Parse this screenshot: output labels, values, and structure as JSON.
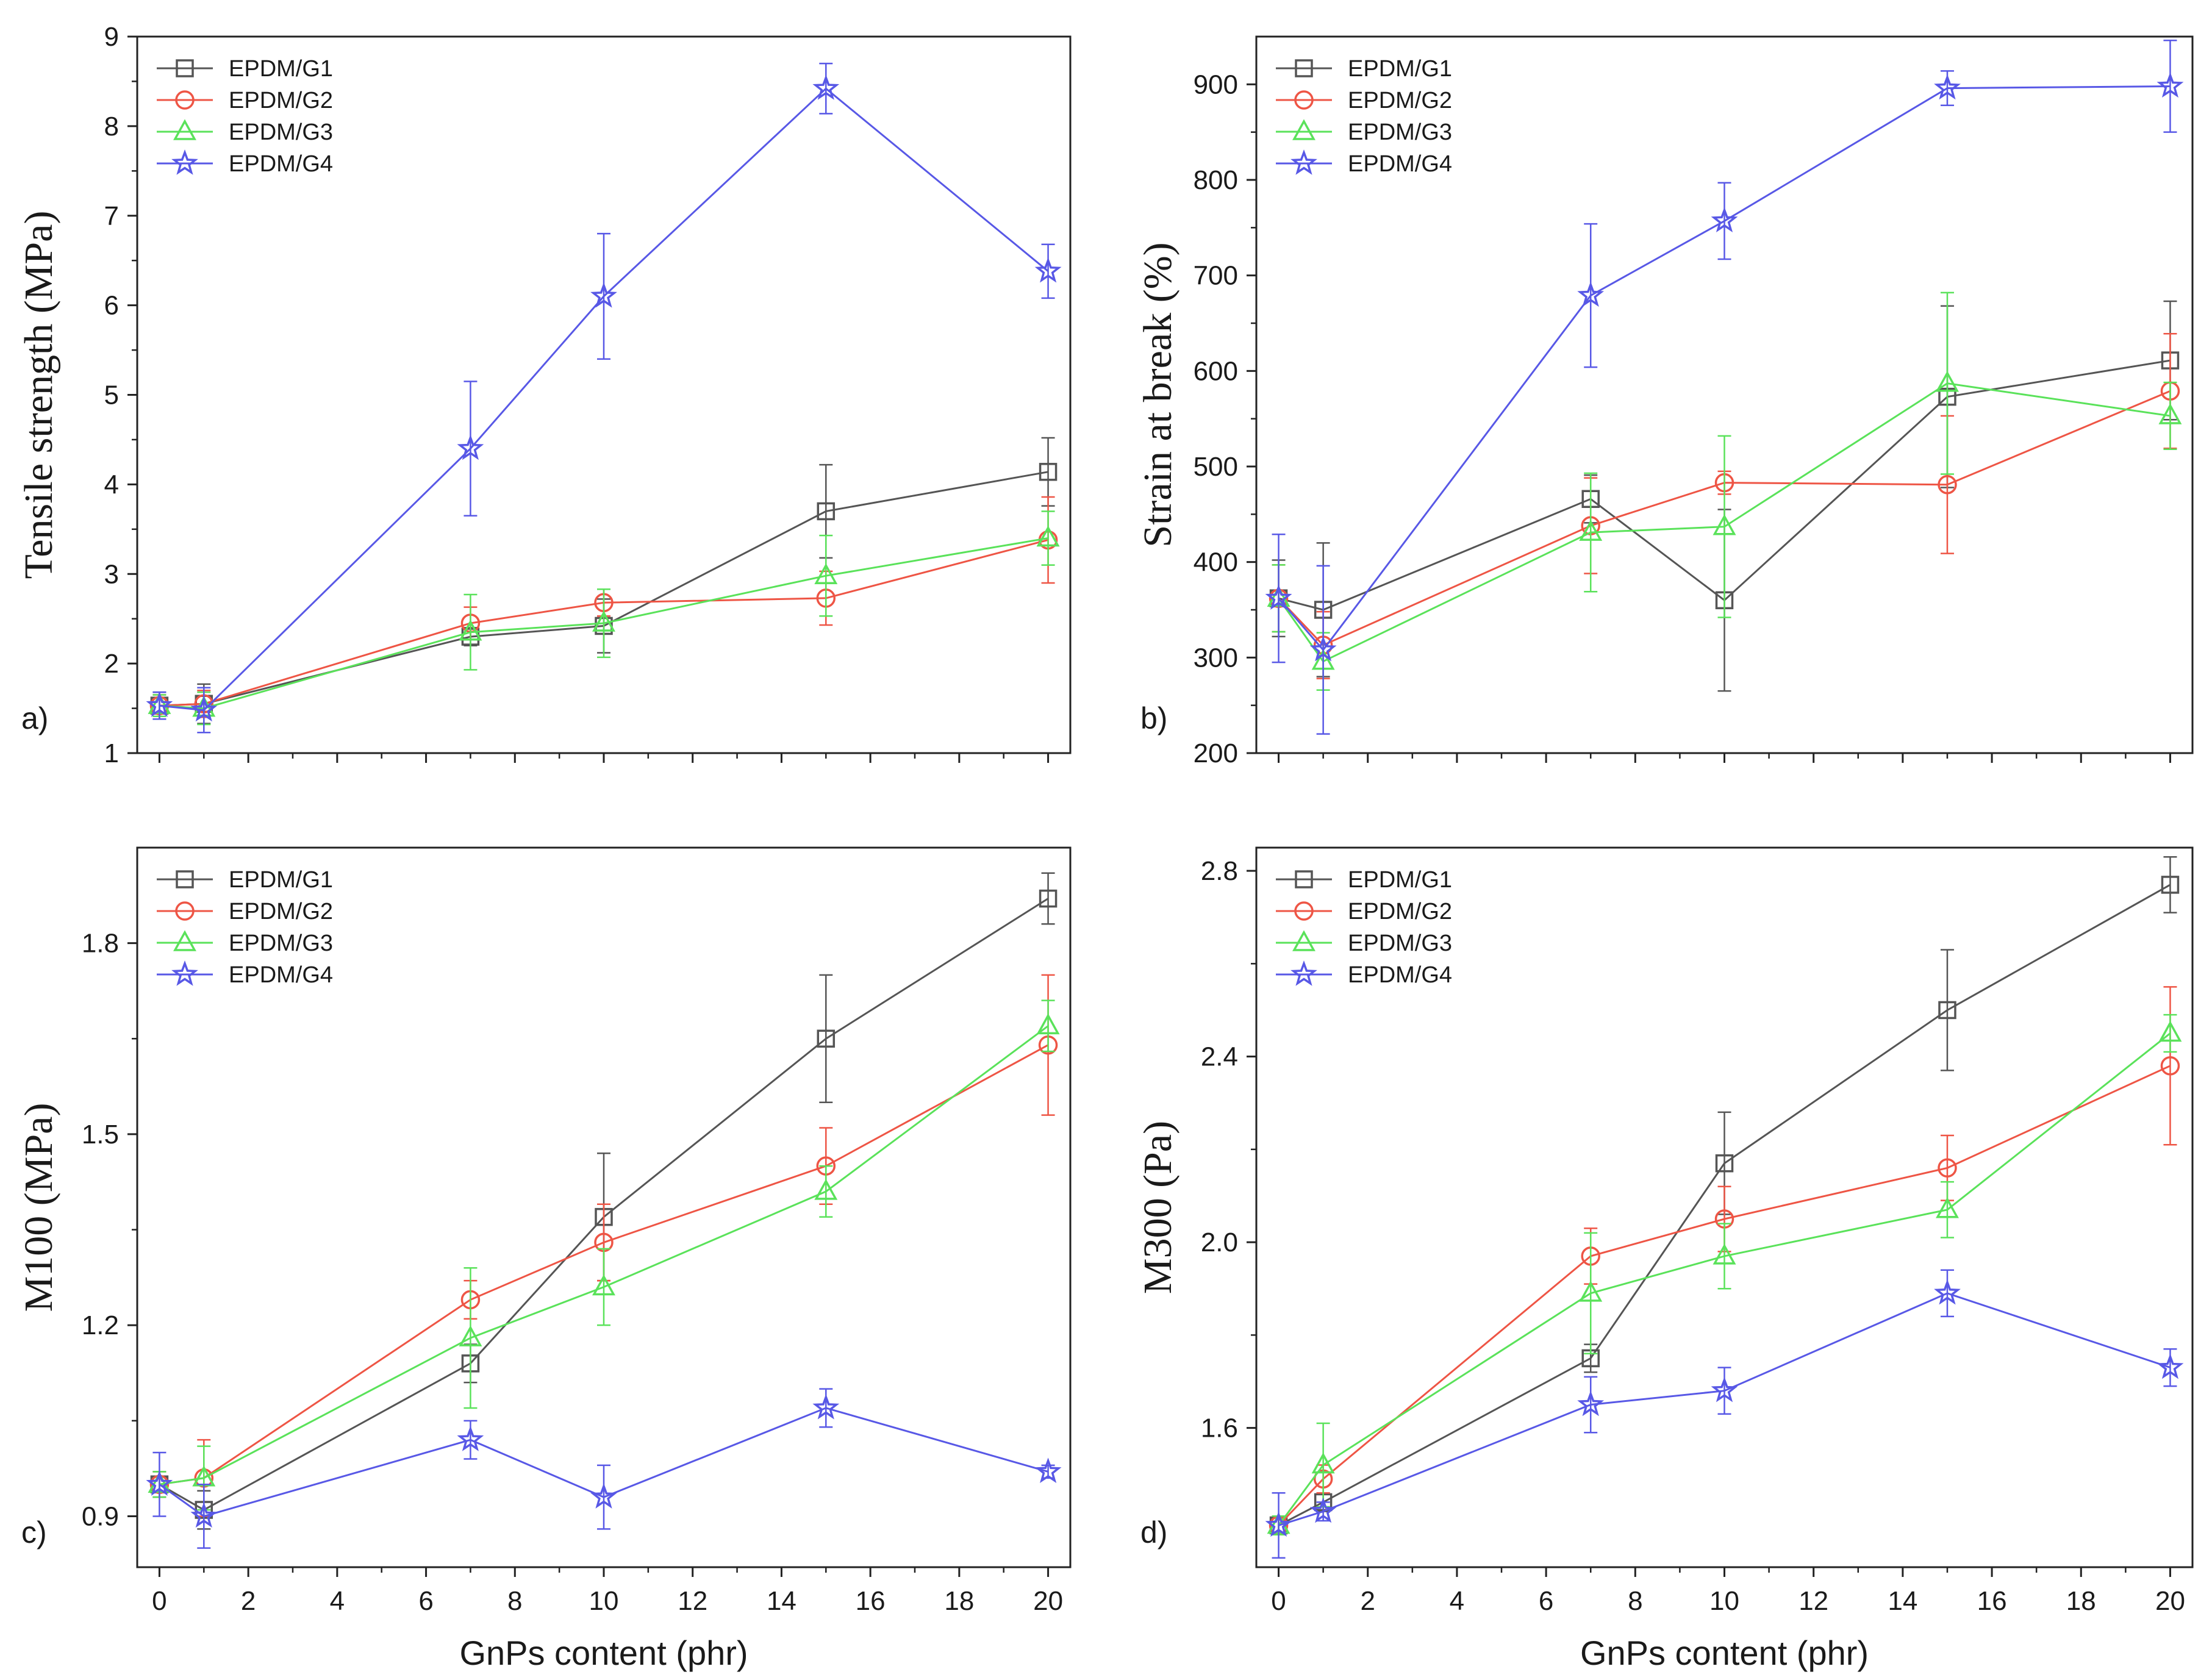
{
  "series_styles": [
    {
      "name": "EPDM/G1",
      "color": "#555555",
      "marker": "square"
    },
    {
      "name": "EPDM/G2",
      "color": "#ee5545",
      "marker": "circle"
    },
    {
      "name": "EPDM/G3",
      "color": "#5ae25a",
      "marker": "triangle"
    },
    {
      "name": "EPDM/G4",
      "color": "#5858e6",
      "marker": "star"
    }
  ],
  "chart_data": [
    {
      "type": "line",
      "panel_label": "a)",
      "ylabel": "Tensile strength (MPa)",
      "xlabel": "",
      "x": [
        0,
        1,
        7,
        10,
        15,
        20
      ],
      "xlim": [
        -0.5,
        20.5
      ],
      "ylim": [
        1,
        9
      ],
      "yticks": [
        1,
        2,
        3,
        4,
        5,
        6,
        7,
        8,
        9
      ],
      "xticks": [
        0,
        2,
        4,
        6,
        8,
        10,
        12,
        14,
        16,
        18,
        20
      ],
      "show_xtick_labels": false,
      "legend": "top-left",
      "series": [
        {
          "name": "EPDM/G1",
          "values": [
            1.53,
            1.55,
            2.3,
            2.42,
            3.7,
            4.14
          ],
          "errors": [
            0.15,
            0.22,
            0.1,
            0.3,
            0.52,
            0.38
          ]
        },
        {
          "name": "EPDM/G2",
          "values": [
            1.53,
            1.55,
            2.45,
            2.68,
            2.73,
            3.38
          ],
          "errors": [
            0.12,
            0.15,
            0.18,
            0.15,
            0.3,
            0.48
          ]
        },
        {
          "name": "EPDM/G3",
          "values": [
            1.53,
            1.5,
            2.35,
            2.45,
            2.98,
            3.4
          ],
          "errors": [
            0.12,
            0.18,
            0.42,
            0.38,
            0.45,
            0.3
          ]
        },
        {
          "name": "EPDM/G4",
          "values": [
            1.53,
            1.48,
            4.4,
            6.1,
            8.42,
            6.38
          ],
          "errors": [
            0.15,
            0.25,
            0.75,
            0.7,
            0.28,
            0.3
          ]
        }
      ]
    },
    {
      "type": "line",
      "panel_label": "b)",
      "ylabel": "Strain at break (%)",
      "xlabel": "",
      "x": [
        0,
        1,
        7,
        10,
        15,
        20
      ],
      "xlim": [
        -0.5,
        20.5
      ],
      "ylim": [
        200,
        950
      ],
      "yticks": [
        200,
        300,
        400,
        500,
        600,
        700,
        800,
        900
      ],
      "xticks": [
        0,
        2,
        4,
        6,
        8,
        10,
        12,
        14,
        16,
        18,
        20
      ],
      "show_xtick_labels": false,
      "legend": "top-left",
      "series": [
        {
          "name": "EPDM/G1",
          "values": [
            362,
            350,
            466,
            360,
            573,
            611
          ],
          "errors": [
            40,
            70,
            25,
            95,
            95,
            62
          ]
        },
        {
          "name": "EPDM/G2",
          "values": [
            362,
            313,
            438,
            483,
            481,
            579
          ],
          "errors": [
            35,
            35,
            50,
            12,
            72,
            60
          ]
        },
        {
          "name": "EPDM/G3",
          "values": [
            362,
            296,
            431,
            437,
            587,
            553
          ],
          "errors": [
            35,
            30,
            62,
            95,
            95,
            35
          ]
        },
        {
          "name": "EPDM/G4",
          "values": [
            362,
            308,
            679,
            757,
            896,
            898
          ],
          "errors": [
            67,
            88,
            75,
            40,
            18,
            48
          ]
        }
      ]
    },
    {
      "type": "line",
      "panel_label": "c)",
      "ylabel": "M100 (MPa)",
      "xlabel": "GnPs content (phr)",
      "x": [
        0,
        1,
        7,
        10,
        15,
        20
      ],
      "xlim": [
        -0.5,
        20.5
      ],
      "ylim": [
        0.82,
        1.95
      ],
      "yticks": [
        0.9,
        1.2,
        1.5,
        1.8
      ],
      "ytick_labels": [
        "0.9",
        "1.2",
        "1.5",
        "1.8"
      ],
      "xticks": [
        0,
        2,
        4,
        6,
        8,
        10,
        12,
        14,
        16,
        18,
        20
      ],
      "show_xtick_labels": true,
      "legend": "top-left",
      "series": [
        {
          "name": "EPDM/G1",
          "values": [
            0.95,
            0.91,
            1.14,
            1.37,
            1.65,
            1.87
          ],
          "errors": [
            0.02,
            0.03,
            0.03,
            0.1,
            0.1,
            0.04
          ]
        },
        {
          "name": "EPDM/G2",
          "values": [
            0.95,
            0.96,
            1.24,
            1.33,
            1.45,
            1.64
          ],
          "errors": [
            0.02,
            0.06,
            0.03,
            0.06,
            0.06,
            0.11
          ]
        },
        {
          "name": "EPDM/G3",
          "values": [
            0.95,
            0.96,
            1.18,
            1.26,
            1.41,
            1.67
          ],
          "errors": [
            0.02,
            0.05,
            0.11,
            0.06,
            0.04,
            0.04
          ]
        },
        {
          "name": "EPDM/G4",
          "values": [
            0.95,
            0.9,
            1.02,
            0.93,
            1.07,
            0.97
          ],
          "errors": [
            0.05,
            0.05,
            0.03,
            0.05,
            0.03,
            0.01
          ]
        }
      ]
    },
    {
      "type": "line",
      "panel_label": "d)",
      "ylabel": "M300 (Pa)",
      "xlabel": "GnPs content (phr)",
      "x": [
        0,
        1,
        7,
        10,
        15,
        20
      ],
      "xlim": [
        -0.5,
        20.5
      ],
      "ylim": [
        1.3,
        2.85
      ],
      "yticks": [
        1.6,
        2.0,
        2.4,
        2.8
      ],
      "ytick_labels": [
        "1.6",
        "2.0",
        "2.4",
        "2.8"
      ],
      "xticks": [
        0,
        2,
        4,
        6,
        8,
        10,
        12,
        14,
        16,
        18,
        20
      ],
      "show_xtick_labels": true,
      "legend": "top-left",
      "series": [
        {
          "name": "EPDM/G1",
          "values": [
            1.39,
            1.44,
            1.75,
            2.17,
            2.5,
            2.77
          ],
          "errors": [
            0.02,
            0.02,
            0.03,
            0.11,
            0.13,
            0.06
          ]
        },
        {
          "name": "EPDM/G2",
          "values": [
            1.39,
            1.49,
            1.97,
            2.05,
            2.16,
            2.38
          ],
          "errors": [
            0.02,
            0.03,
            0.06,
            0.07,
            0.07,
            0.17
          ]
        },
        {
          "name": "EPDM/G3",
          "values": [
            1.39,
            1.52,
            1.89,
            1.97,
            2.07,
            2.45
          ],
          "errors": [
            0.02,
            0.09,
            0.13,
            0.07,
            0.06,
            0.04
          ]
        },
        {
          "name": "EPDM/G4",
          "values": [
            1.39,
            1.42,
            1.65,
            1.68,
            1.89,
            1.73
          ],
          "errors": [
            0.07,
            0.02,
            0.06,
            0.05,
            0.05,
            0.04
          ]
        }
      ]
    }
  ]
}
